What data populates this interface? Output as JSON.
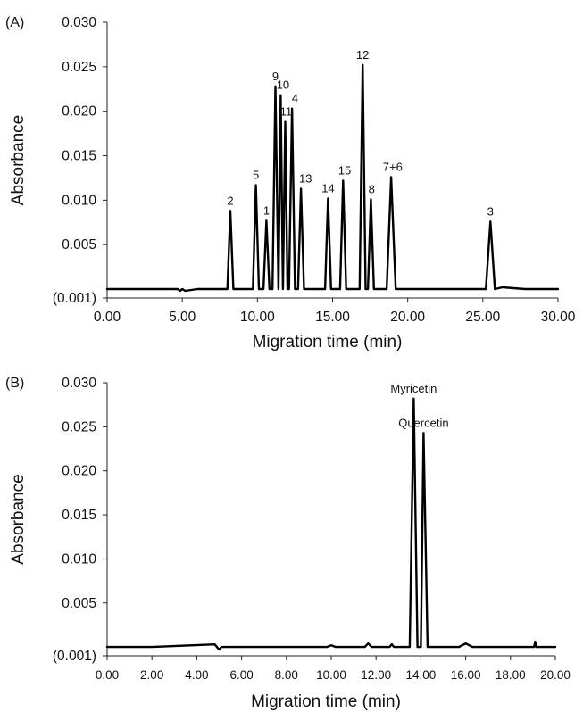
{
  "chart_data": [
    {
      "type": "line",
      "panel_label": "(A)",
      "xlabel": "Migration time (min)",
      "ylabel": "Absorbance",
      "xlim": [
        0,
        30
      ],
      "ylim": [
        -0.001,
        0.03
      ],
      "xticks": [
        0,
        5,
        10,
        15,
        20,
        25,
        30
      ],
      "xtick_labels": [
        "0.00",
        "5.00",
        "10.00",
        "15.00",
        "20.00",
        "25.00",
        "30.00"
      ],
      "yticks": [
        -0.001,
        0.005,
        0.01,
        0.015,
        0.02,
        0.025,
        0.03
      ],
      "ytick_labels": [
        "(0.001)",
        "0.005",
        "0.010",
        "0.015",
        "0.020",
        "0.025",
        "0.030"
      ],
      "grid": false,
      "series": [
        {
          "x": [
            0,
            2.8,
            4.7,
            4.85,
            5.0,
            5.2,
            6,
            8.0,
            8.2,
            8.4,
            9.7,
            9.9,
            10.1,
            10.4,
            10.6,
            10.8,
            11.0,
            11.2,
            11.4,
            11.55,
            11.7,
            11.85,
            12.0,
            12.1,
            12.3,
            12.5,
            12.7,
            12.9,
            13.1,
            14.5,
            14.7,
            14.9,
            15.5,
            15.7,
            15.9,
            16.8,
            17.0,
            17.2,
            17.35,
            17.55,
            17.75,
            18.6,
            18.9,
            19.2,
            25.2,
            25.5,
            25.8,
            26.3,
            27.8,
            30
          ],
          "y": [
            0,
            0,
            0,
            -0.0002,
            0,
            -0.0002,
            0,
            0,
            0.0088,
            0,
            0,
            0.0117,
            0,
            0,
            0.0077,
            0,
            0,
            0.0228,
            0,
            0.0218,
            0,
            0.0188,
            0,
            0,
            0.0203,
            0,
            0,
            0.0113,
            0,
            0,
            0.0102,
            0,
            0,
            0.0122,
            0,
            0,
            0.0252,
            0,
            0,
            0.0101,
            0,
            0,
            0.0126,
            0,
            0,
            0.0076,
            0,
            0.0002,
            0,
            0
          ]
        }
      ],
      "annotations": [
        {
          "text": "2",
          "x": 8.2,
          "y": 0.0088
        },
        {
          "text": "5",
          "x": 9.9,
          "y": 0.0117
        },
        {
          "text": "1",
          "x": 10.6,
          "y": 0.0077
        },
        {
          "text": "9",
          "x": 11.2,
          "y": 0.0228
        },
        {
          "text": "10",
          "x": 11.7,
          "y": 0.0218
        },
        {
          "text": "11",
          "x": 11.9,
          "y": 0.0188
        },
        {
          "text": "4",
          "x": 12.5,
          "y": 0.0203
        },
        {
          "text": "13",
          "x": 13.2,
          "y": 0.0113
        },
        {
          "text": "14",
          "x": 14.7,
          "y": 0.0102
        },
        {
          "text": "15",
          "x": 15.8,
          "y": 0.0122
        },
        {
          "text": "12",
          "x": 17.0,
          "y": 0.0252
        },
        {
          "text": "8",
          "x": 17.6,
          "y": 0.0101
        },
        {
          "text": "7+6",
          "x": 19.0,
          "y": 0.0126
        },
        {
          "text": "3",
          "x": 25.5,
          "y": 0.0076
        }
      ]
    },
    {
      "type": "line",
      "panel_label": "(B)",
      "xlabel": "Migration time (min)",
      "ylabel": "Absorbance",
      "xlim": [
        0,
        20
      ],
      "ylim": [
        -0.001,
        0.03
      ],
      "xticks": [
        0,
        2,
        4,
        6,
        8,
        10,
        12,
        14,
        16,
        18,
        20
      ],
      "xtick_labels": [
        "0.00",
        "2.00",
        "4.00",
        "6.00",
        "8.00",
        "10.00",
        "12.00",
        "14.00",
        "16.00",
        "18.00",
        "20.00"
      ],
      "yticks": [
        -0.001,
        0.005,
        0.01,
        0.015,
        0.02,
        0.025,
        0.03
      ],
      "ytick_labels": [
        "(0.001)",
        "0.005",
        "0.010",
        "0.015",
        "0.020",
        "0.025",
        "0.030"
      ],
      "grid": false,
      "series": [
        {
          "x": [
            0,
            2,
            4.8,
            5.0,
            5.1,
            5.3,
            9.8,
            10.0,
            10.2,
            11.5,
            11.65,
            11.8,
            12.6,
            12.7,
            12.8,
            13.5,
            13.68,
            13.85,
            14.0,
            14.12,
            14.3,
            15.7,
            16.0,
            16.3,
            19.05,
            19.1,
            19.15,
            20
          ],
          "y": [
            0,
            0,
            0.0003,
            -0.0003,
            0,
            0,
            0,
            0.0002,
            0,
            0,
            0.0004,
            0,
            0,
            0.0003,
            0,
            0,
            0.0282,
            0,
            0,
            0.0243,
            0,
            0,
            0.0004,
            0,
            0,
            0.0006,
            0,
            0
          ]
        }
      ],
      "annotations": [
        {
          "text": "Myricetin",
          "x": 13.68,
          "y": 0.0282
        },
        {
          "text": "Quercetin",
          "x": 14.12,
          "y": 0.0243
        }
      ]
    }
  ]
}
